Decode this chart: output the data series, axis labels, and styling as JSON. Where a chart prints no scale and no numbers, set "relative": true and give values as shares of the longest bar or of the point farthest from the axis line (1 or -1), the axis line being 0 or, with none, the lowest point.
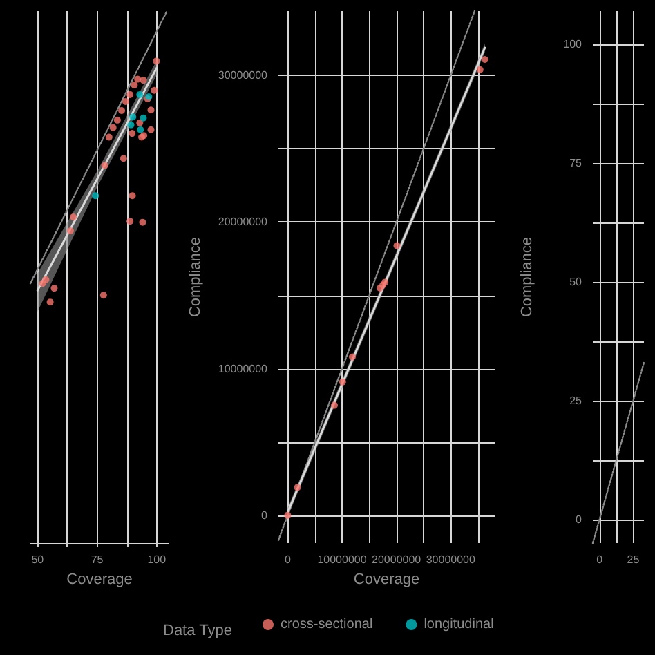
{
  "chart_data": [
    {
      "type": "scatter",
      "xlabel": "Coverage",
      "relative": true,
      "xlim": [
        47,
        105
      ],
      "xticks": [
        50,
        {
          "value": 62.5,
          "label": null
        },
        75,
        {
          "value": 87.5,
          "label": null
        },
        100
      ],
      "tick_labels": "x",
      "grid": "x",
      "legend": "bottom",
      "legend_title": "Data Type",
      "series": [
        {
          "name": "cross-sectional",
          "marker": "circle",
          "color": "#f8766d",
          "x": [
            99.9,
            99,
            97.6,
            97.6,
            94.6,
            93.7,
            92.9,
            89.7,
            94.1,
            88.8,
            89.8,
            86.1,
            78.2,
            77.7,
            65,
            63.8,
            53.5,
            57,
            55.3,
            52.1,
            80,
            81.7,
            83.5,
            85.3,
            87,
            88.8,
            90.6,
            92,
            94.4,
            96.2
          ],
          "values": [
            0.906,
            0.851,
            0.814,
            0.777,
            0.766,
            0.763,
            0.79,
            0.77,
            0.603,
            0.605,
            0.653,
            0.723,
            0.71,
            0.466,
            0.613,
            0.587,
            0.495,
            0.479,
            0.453,
            0.488,
            0.763,
            0.781,
            0.795,
            0.813,
            0.83,
            0.843,
            0.861,
            0.872,
            0.87,
            0.835
          ]
        },
        {
          "name": "longitudinal",
          "marker": "circle",
          "color": "#00bfc4",
          "x": [
            74.3,
            90,
            89.2,
            92.9,
            96.7,
            94.4,
            93.2
          ],
          "values": [
            0.653,
            0.801,
            0.786,
            0.843,
            0.839,
            0.799,
            0.777
          ]
        },
        {
          "type": "line",
          "marker": "none",
          "color": "#d9d9d9",
          "x": [
            50,
            75,
            100
          ],
          "values": [
            0.475,
            0.684,
            0.893
          ],
          "lower": [
            0.435,
            0.669,
            0.88
          ],
          "upper": [
            0.507,
            0.699,
            0.907
          ]
        },
        {
          "type": "line",
          "marker": "none",
          "line_style": "dotted",
          "color": "#8a8a8a",
          "x": [
            47,
            104.3
          ],
          "values": [
            0.488,
            1
          ]
        }
      ]
    },
    {
      "type": "scatter",
      "xlabel": "Coverage",
      "ylabel": "Compliance",
      "xlim": [
        -1700000,
        38100000
      ],
      "xticks": [
        0,
        {
          "value": 5000000,
          "label": null
        },
        10000000,
        {
          "value": 15000000,
          "label": null
        },
        20000000,
        {
          "value": 25000000,
          "label": null
        },
        30000000,
        {
          "value": 35000000,
          "label": null
        }
      ],
      "ylim": [
        -1900000,
        34400000
      ],
      "yticks": [
        0,
        {
          "value": 5000000,
          "label": null
        },
        10000000,
        {
          "value": 15000000,
          "label": null
        },
        20000000,
        {
          "value": 25000000,
          "label": null
        },
        30000000
      ],
      "grid": true,
      "series": [
        {
          "marker": "circle",
          "color": "#f8766d",
          "x": [
            0,
            1800000,
            8600000,
            10100000,
            11900000,
            17000000,
            17900000,
            17500000,
            20100000,
            35400000,
            36300000
          ],
          "values": [
            0,
            1900000,
            7500000,
            9100000,
            10800000,
            15500000,
            15900000,
            15700000,
            18400000,
            30400000,
            31100000
          ]
        },
        {
          "type": "line",
          "marker": "none",
          "color": "#d9d9d9",
          "x": [
            0,
            36300000
          ],
          "values": [
            200000,
            31900000
          ],
          "lower": [
            -100000,
            31600000
          ],
          "upper": [
            500000,
            32200000
          ]
        },
        {
          "type": "line",
          "marker": "none",
          "line_style": "dotted",
          "color": "#8a8a8a",
          "x": [
            -1700000,
            34400000
          ],
          "values": [
            -1700000,
            34400000
          ]
        }
      ]
    },
    {
      "type": "line",
      "ylabel": "Compliance",
      "xlim": [
        -5,
        33
      ],
      "xticks": [
        0,
        {
          "value": 12.5,
          "label": null
        },
        25
      ],
      "ylim": [
        -5,
        107
      ],
      "yticks": [
        0,
        {
          "value": 12.5,
          "label": null
        },
        25,
        {
          "value": 37.5,
          "label": null
        },
        50,
        {
          "value": 62.5,
          "label": null
        },
        75,
        {
          "value": 87.5,
          "label": null
        },
        100
      ],
      "grid": true,
      "series": [
        {
          "marker": "none",
          "line_style": "dotted",
          "color": "#8a8a8a",
          "x": [
            -5,
            33
          ],
          "values": [
            -5,
            33
          ]
        }
      ]
    }
  ]
}
